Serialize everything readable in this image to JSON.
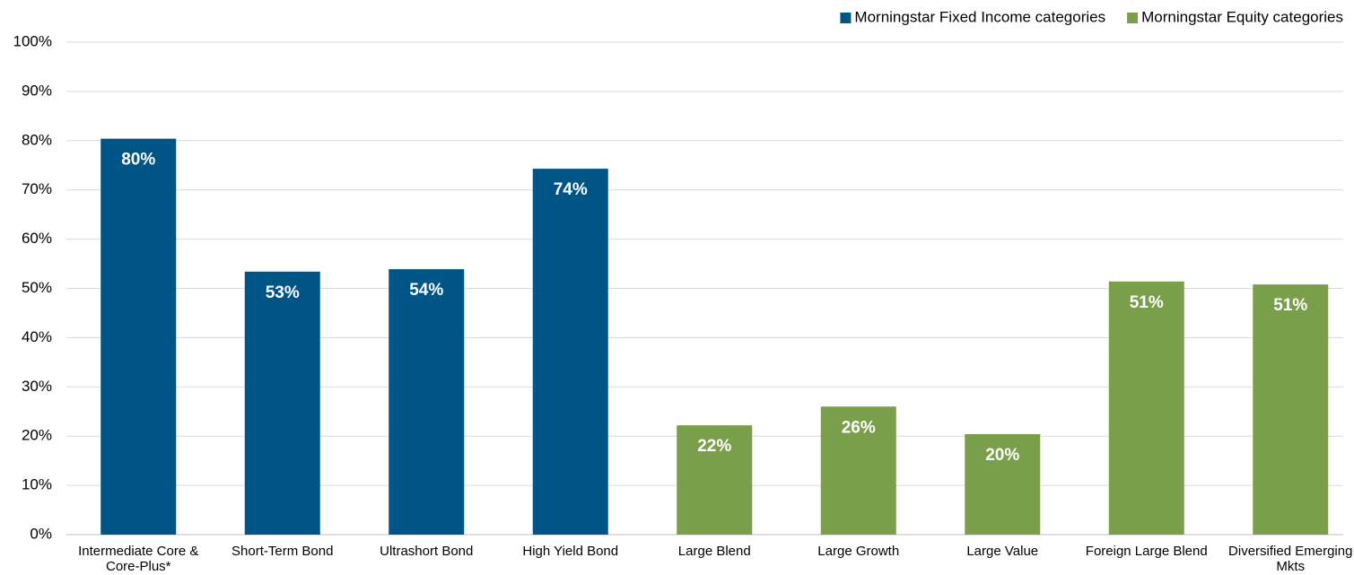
{
  "chart_data": {
    "type": "bar",
    "categories": [
      "Intermediate Core & Core-Plus*",
      "Short-Term Bond",
      "Ultrashort Bond",
      "High Yield Bond",
      "Large Blend",
      "Large Growth",
      "Large Value",
      "Foreign Large Blend",
      "Diversified Emerging Mkts"
    ],
    "series": [
      {
        "name": "Morningstar Fixed Income categories",
        "color": "#005587",
        "values": [
          80.4,
          53.4,
          53.9,
          74.3,
          null,
          null,
          null,
          null,
          null
        ],
        "value_labels": [
          "80%",
          "53%",
          "54%",
          "74%",
          null,
          null,
          null,
          null,
          null
        ]
      },
      {
        "name": "Morningstar Equity categories",
        "color": "#7a9f4a",
        "values": [
          null,
          null,
          null,
          null,
          22.2,
          26.0,
          20.4,
          51.4,
          50.8
        ],
        "value_labels": [
          null,
          null,
          null,
          null,
          "22%",
          "26%",
          "20%",
          "51%",
          "51%"
        ]
      }
    ],
    "ylim": [
      0,
      100
    ],
    "yticks": [
      {
        "value": 0,
        "label": "0%"
      },
      {
        "value": 10,
        "label": "10%"
      },
      {
        "value": 20,
        "label": "20%"
      },
      {
        "value": 30,
        "label": "30%"
      },
      {
        "value": 40,
        "label": "40%"
      },
      {
        "value": 50,
        "label": "50%"
      },
      {
        "value": 60,
        "label": "60%"
      },
      {
        "value": 70,
        "label": "70%"
      },
      {
        "value": 80,
        "label": "80%"
      },
      {
        "value": 90,
        "label": "90%"
      },
      {
        "value": 100,
        "label": "100%"
      }
    ],
    "grid": true,
    "legend": "top-right"
  }
}
